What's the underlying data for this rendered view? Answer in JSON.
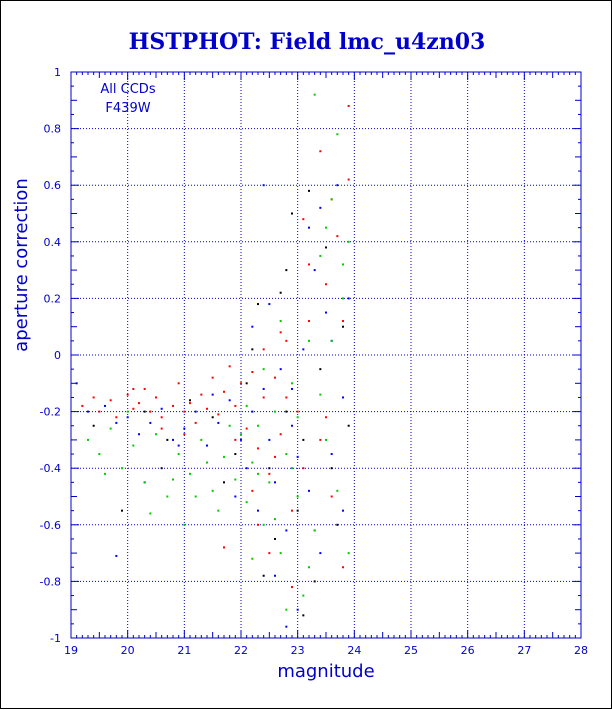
{
  "chart_data": {
    "type": "scatter",
    "title": "HSTPHOT: Field lmc_u4zn03",
    "xlabel": "magnitude",
    "ylabel": "aperture correction",
    "xlim": [
      19,
      28
    ],
    "ylim": [
      -1,
      1
    ],
    "xticks": [
      19,
      20,
      21,
      22,
      23,
      24,
      25,
      26,
      27,
      28
    ],
    "yticks": [
      -1,
      -0.8,
      -0.6,
      -0.4,
      -0.2,
      0,
      0.2,
      0.4,
      0.6,
      0.8,
      1
    ],
    "grid": true,
    "annotations": [
      "All CCDs",
      "F439W"
    ],
    "series": [
      {
        "color": "#ff0000",
        "points": [
          [
            19.2,
            -0.18
          ],
          [
            19.4,
            -0.15
          ],
          [
            19.5,
            -0.2
          ],
          [
            19.7,
            -0.16
          ],
          [
            19.8,
            -0.22
          ],
          [
            20.0,
            -0.14
          ],
          [
            20.1,
            -0.19
          ],
          [
            20.2,
            -0.17
          ],
          [
            20.3,
            -0.12
          ],
          [
            20.4,
            -0.2
          ],
          [
            20.5,
            -0.15
          ],
          [
            20.6,
            -0.22
          ],
          [
            20.8,
            -0.18
          ],
          [
            20.9,
            -0.1
          ],
          [
            21.0,
            -0.2
          ],
          [
            21.1,
            -0.17
          ],
          [
            21.2,
            -0.24
          ],
          [
            21.3,
            -0.14
          ],
          [
            21.4,
            -0.19
          ],
          [
            21.5,
            -0.08
          ],
          [
            21.6,
            -0.21
          ],
          [
            21.7,
            -0.13
          ],
          [
            21.8,
            -0.04
          ],
          [
            21.9,
            -0.18
          ],
          [
            22.0,
            -0.1
          ],
          [
            22.1,
            -0.26
          ],
          [
            22.2,
            -0.06
          ],
          [
            22.3,
            -0.33
          ],
          [
            22.4,
            -0.15
          ],
          [
            22.5,
            -0.42
          ],
          [
            22.6,
            -0.08
          ],
          [
            22.7,
            -0.28
          ],
          [
            22.8,
            0.05
          ],
          [
            22.9,
            -0.55
          ],
          [
            23.0,
            -0.2
          ],
          [
            23.1,
            -0.4
          ],
          [
            23.2,
            0.12
          ],
          [
            23.3,
            -0.62
          ],
          [
            23.4,
            -0.3
          ],
          [
            23.5,
            0.25
          ],
          [
            23.6,
            -0.5
          ],
          [
            23.7,
            0.42
          ],
          [
            23.8,
            -0.75
          ],
          [
            23.9,
            0.62
          ],
          [
            23.4,
            0.72
          ],
          [
            23.6,
            0.55
          ],
          [
            23.9,
            0.88
          ],
          [
            22.7,
            0.08
          ],
          [
            22.5,
            -0.7
          ],
          [
            22.9,
            -0.82
          ],
          [
            23.2,
            0.32
          ],
          [
            22.8,
            -0.15
          ],
          [
            21.0,
            -0.28
          ],
          [
            20.1,
            -0.12
          ],
          [
            22.4,
            0.02
          ],
          [
            23.1,
            0.48
          ],
          [
            21.7,
            -0.68
          ],
          [
            22.2,
            -0.48
          ],
          [
            23.5,
            -0.22
          ],
          [
            22.6,
            -0.36
          ],
          [
            21.9,
            -0.3
          ],
          [
            20.6,
            -0.26
          ],
          [
            23.8,
            0.12
          ],
          [
            22.3,
            -0.6
          ]
        ]
      },
      {
        "color": "#0000ff",
        "points": [
          [
            19.1,
            -0.1
          ],
          [
            19.3,
            -0.2
          ],
          [
            19.6,
            -0.18
          ],
          [
            19.8,
            -0.24
          ],
          [
            20.0,
            -0.22
          ],
          [
            20.2,
            -0.28
          ],
          [
            20.4,
            -0.24
          ],
          [
            20.6,
            -0.19
          ],
          [
            20.8,
            -0.3
          ],
          [
            21.0,
            -0.26
          ],
          [
            21.2,
            -0.2
          ],
          [
            21.4,
            -0.32
          ],
          [
            21.6,
            -0.24
          ],
          [
            21.8,
            -0.16
          ],
          [
            22.0,
            -0.3
          ],
          [
            22.1,
            -0.4
          ],
          [
            22.2,
            -0.2
          ],
          [
            22.3,
            -0.55
          ],
          [
            22.4,
            -0.12
          ],
          [
            22.5,
            -0.3
          ],
          [
            22.6,
            -0.45
          ],
          [
            22.7,
            -0.05
          ],
          [
            22.8,
            -0.62
          ],
          [
            22.9,
            -0.25
          ],
          [
            23.0,
            -0.9
          ],
          [
            23.1,
            0.02
          ],
          [
            23.2,
            -0.48
          ],
          [
            23.3,
            0.3
          ],
          [
            23.4,
            -0.7
          ],
          [
            23.5,
            0.15
          ],
          [
            23.6,
            -0.35
          ],
          [
            23.7,
            0.6
          ],
          [
            23.8,
            -0.55
          ],
          [
            23.9,
            0.2
          ],
          [
            19.8,
            -0.71
          ],
          [
            22.4,
            0.6
          ],
          [
            23.2,
            0.45
          ],
          [
            22.6,
            -0.78
          ],
          [
            21.9,
            -0.5
          ],
          [
            22.9,
            -0.12
          ],
          [
            20.3,
            -0.45
          ],
          [
            23.6,
            0.05
          ],
          [
            22.2,
            0.1
          ],
          [
            23.0,
            -0.36
          ],
          [
            21.5,
            -0.14
          ],
          [
            23.4,
            0.52
          ],
          [
            22.8,
            -0.96
          ],
          [
            20.9,
            -0.32
          ],
          [
            23.8,
            -0.15
          ],
          [
            22.5,
            0.18
          ]
        ]
      },
      {
        "color": "#00cc00",
        "points": [
          [
            19.3,
            -0.3
          ],
          [
            19.5,
            -0.35
          ],
          [
            19.7,
            -0.26
          ],
          [
            19.9,
            -0.4
          ],
          [
            20.1,
            -0.32
          ],
          [
            20.3,
            -0.45
          ],
          [
            20.5,
            -0.28
          ],
          [
            20.7,
            -0.5
          ],
          [
            20.9,
            -0.35
          ],
          [
            21.1,
            -0.42
          ],
          [
            21.3,
            -0.3
          ],
          [
            21.5,
            -0.48
          ],
          [
            21.7,
            -0.36
          ],
          [
            21.9,
            -0.44
          ],
          [
            22.0,
            -0.28
          ],
          [
            22.1,
            -0.52
          ],
          [
            22.2,
            -0.38
          ],
          [
            22.3,
            -0.25
          ],
          [
            22.4,
            -0.6
          ],
          [
            22.5,
            -0.45
          ],
          [
            22.6,
            -0.2
          ],
          [
            22.7,
            -0.7
          ],
          [
            22.8,
            -0.35
          ],
          [
            22.9,
            -0.1
          ],
          [
            23.0,
            -0.5
          ],
          [
            23.1,
            -0.85
          ],
          [
            23.2,
            0.05
          ],
          [
            23.3,
            -0.62
          ],
          [
            23.4,
            0.35
          ],
          [
            23.5,
            -0.3
          ],
          [
            23.6,
            0.55
          ],
          [
            23.7,
            -0.48
          ],
          [
            23.8,
            0.2
          ],
          [
            23.9,
            -0.7
          ],
          [
            23.3,
            0.92
          ],
          [
            22.8,
            -0.9
          ],
          [
            23.7,
            0.78
          ],
          [
            20.4,
            -0.56
          ],
          [
            21.0,
            -0.6
          ],
          [
            21.6,
            -0.55
          ],
          [
            22.2,
            -0.72
          ],
          [
            23.5,
            0.45
          ],
          [
            22.4,
            -0.05
          ],
          [
            23.0,
            -0.22
          ],
          [
            20.0,
            -0.2
          ],
          [
            19.6,
            -0.42
          ],
          [
            21.8,
            -0.25
          ],
          [
            22.9,
            -0.4
          ],
          [
            23.8,
            0.32
          ],
          [
            22.6,
            -0.58
          ],
          [
            21.4,
            -0.38
          ],
          [
            20.8,
            -0.44
          ],
          [
            23.2,
            -0.75
          ],
          [
            22.7,
            0.12
          ],
          [
            23.6,
            0.05
          ],
          [
            21.2,
            -0.5
          ],
          [
            22.3,
            -0.42
          ],
          [
            23.9,
            0.4
          ],
          [
            22.1,
            -0.18
          ],
          [
            23.4,
            -0.14
          ]
        ]
      },
      {
        "color": "#000000",
        "points": [
          [
            19.4,
            -0.25
          ],
          [
            19.9,
            -0.55
          ],
          [
            20.3,
            -0.2
          ],
          [
            20.7,
            -0.3
          ],
          [
            21.1,
            -0.16
          ],
          [
            21.5,
            -0.22
          ],
          [
            21.9,
            -0.35
          ],
          [
            22.1,
            -0.1
          ],
          [
            22.3,
            0.18
          ],
          [
            22.5,
            -0.4
          ],
          [
            22.6,
            -0.65
          ],
          [
            22.7,
            0.22
          ],
          [
            22.8,
            -0.2
          ],
          [
            22.9,
            0.5
          ],
          [
            23.0,
            -0.55
          ],
          [
            23.1,
            -0.3
          ],
          [
            23.2,
            0.58
          ],
          [
            23.3,
            -0.8
          ],
          [
            23.4,
            -0.05
          ],
          [
            23.5,
            0.38
          ],
          [
            23.6,
            -0.4
          ],
          [
            23.7,
            -0.6
          ],
          [
            23.8,
            0.1
          ],
          [
            22.4,
            -0.78
          ],
          [
            22.2,
            0.02
          ],
          [
            21.7,
            -0.45
          ],
          [
            20.6,
            -0.4
          ],
          [
            23.9,
            -0.25
          ],
          [
            22.8,
            0.3
          ],
          [
            23.1,
            -0.92
          ]
        ]
      }
    ]
  }
}
